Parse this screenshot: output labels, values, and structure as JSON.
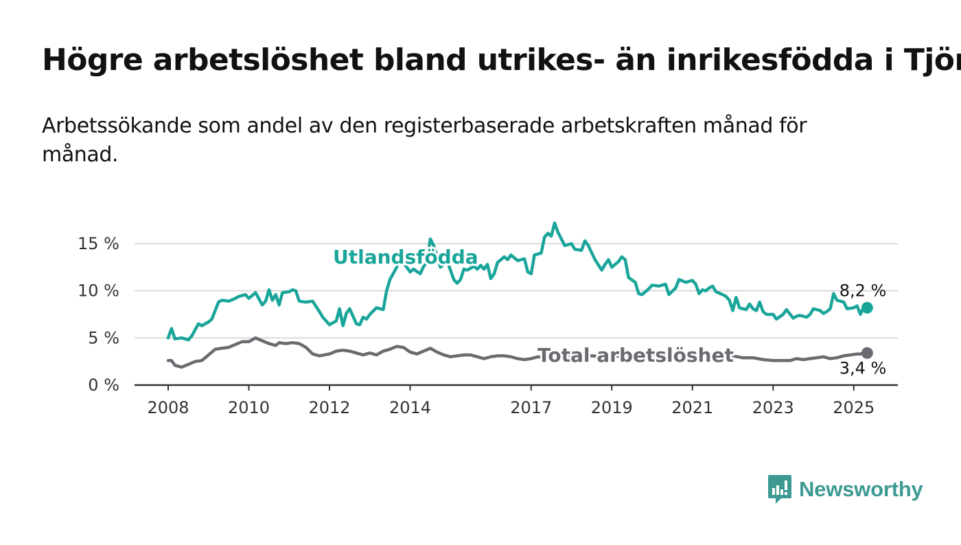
{
  "title": "Högre arbetslöshet bland utrikes- än inrikesfödda i Tjörn",
  "subtitle": "Arbetssökande som andel av den registerbaserade arbetskraften månad för månad.",
  "brand": {
    "name": "Newsworthy",
    "icon": "bar-chart-speech-bubble-icon",
    "color": "#3c9a92"
  },
  "colors": {
    "utlandsfodda": "#1aa59a",
    "total": "#6b6a70",
    "grid": "#d9d9d9",
    "axis": "#333333"
  },
  "chart_data": {
    "type": "line",
    "title": "Högre arbetslöshet bland utrikes- än inrikesfödda i Tjörn",
    "xlabel": "",
    "ylabel": "",
    "x_ticks": [
      "2008",
      "2010",
      "2012",
      "2014",
      "2017",
      "2019",
      "2021",
      "2023",
      "2025"
    ],
    "y_ticks": [
      "0 %",
      "5 %",
      "10 %",
      "15 %"
    ],
    "y_tick_values": [
      0,
      5,
      10,
      15
    ],
    "ylim": [
      0,
      15
    ],
    "xlim": [
      "2008-01",
      "2025-05"
    ],
    "grid": true,
    "legend": "inline labels",
    "series": [
      {
        "name": "Utlandsfödda",
        "label": "Utlandsfödda",
        "end_label": "8,2 %",
        "color": "#1aa59a",
        "points": [
          [
            "2008-01",
            5.0
          ],
          [
            "2008-02",
            6.0
          ],
          [
            "2008-03",
            4.9
          ],
          [
            "2008-05",
            5.0
          ],
          [
            "2008-07",
            4.8
          ],
          [
            "2008-08",
            5.2
          ],
          [
            "2008-10",
            6.5
          ],
          [
            "2008-11",
            6.3
          ],
          [
            "2009-01",
            6.7
          ],
          [
            "2009-02",
            7.0
          ],
          [
            "2009-04",
            8.8
          ],
          [
            "2009-05",
            9.0
          ],
          [
            "2009-07",
            8.9
          ],
          [
            "2009-09",
            9.2
          ],
          [
            "2009-10",
            9.4
          ],
          [
            "2009-12",
            9.6
          ],
          [
            "2010-01",
            9.2
          ],
          [
            "2010-03",
            9.8
          ],
          [
            "2010-05",
            8.5
          ],
          [
            "2010-06",
            8.9
          ],
          [
            "2010-07",
            10.1
          ],
          [
            "2010-08",
            9.0
          ],
          [
            "2010-09",
            9.6
          ],
          [
            "2010-10",
            8.5
          ],
          [
            "2010-11",
            9.8
          ],
          [
            "2011-01",
            9.9
          ],
          [
            "2011-02",
            10.1
          ],
          [
            "2011-03",
            10.0
          ],
          [
            "2011-04",
            8.9
          ],
          [
            "2011-06",
            8.8
          ],
          [
            "2011-08",
            8.9
          ],
          [
            "2011-10",
            7.8
          ],
          [
            "2011-11",
            7.2
          ],
          [
            "2012-01",
            6.4
          ],
          [
            "2012-03",
            6.8
          ],
          [
            "2012-04",
            8.1
          ],
          [
            "2012-05",
            6.3
          ],
          [
            "2012-06",
            7.6
          ],
          [
            "2012-07",
            8.1
          ],
          [
            "2012-09",
            6.5
          ],
          [
            "2012-10",
            6.4
          ],
          [
            "2012-11",
            7.2
          ],
          [
            "2012-12",
            7.0
          ],
          [
            "2013-01",
            7.5
          ],
          [
            "2013-03",
            8.2
          ],
          [
            "2013-05",
            8.0
          ],
          [
            "2013-06",
            10.0
          ],
          [
            "2013-07",
            11.2
          ],
          [
            "2013-09",
            12.5
          ],
          [
            "2013-10",
            13.5
          ],
          [
            "2013-12",
            12.5
          ],
          [
            "2014-01",
            12.0
          ],
          [
            "2014-02",
            12.3
          ],
          [
            "2014-04",
            11.8
          ],
          [
            "2014-05",
            12.6
          ],
          [
            "2014-06",
            13.0
          ],
          [
            "2014-07",
            15.5
          ],
          [
            "2014-08",
            14.8
          ],
          [
            "2014-10",
            12.5
          ],
          [
            "2014-11",
            12.8
          ],
          [
            "2014-12",
            13.2
          ],
          [
            "2015-02",
            11.2
          ],
          [
            "2015-03",
            10.8
          ],
          [
            "2015-04",
            11.2
          ],
          [
            "2015-05",
            12.3
          ],
          [
            "2015-06",
            12.2
          ],
          [
            "2015-08",
            12.6
          ],
          [
            "2015-09",
            12.3
          ],
          [
            "2015-10",
            12.7
          ],
          [
            "2015-11",
            12.3
          ],
          [
            "2015-12",
            12.8
          ],
          [
            "2016-01",
            11.3
          ],
          [
            "2016-02",
            11.8
          ],
          [
            "2016-03",
            13.0
          ],
          [
            "2016-05",
            13.6
          ],
          [
            "2016-06",
            13.3
          ],
          [
            "2016-07",
            13.8
          ],
          [
            "2016-08",
            13.5
          ],
          [
            "2016-09",
            13.2
          ],
          [
            "2016-11",
            13.4
          ],
          [
            "2016-12",
            12.0
          ],
          [
            "2017-01",
            11.8
          ],
          [
            "2017-02",
            13.8
          ],
          [
            "2017-04",
            14.0
          ],
          [
            "2017-05",
            15.7
          ],
          [
            "2017-06",
            16.1
          ],
          [
            "2017-07",
            15.8
          ],
          [
            "2017-08",
            17.2
          ],
          [
            "2017-09",
            16.2
          ],
          [
            "2017-11",
            14.8
          ],
          [
            "2018-01",
            15.0
          ],
          [
            "2018-02",
            14.4
          ],
          [
            "2018-04",
            14.3
          ],
          [
            "2018-05",
            15.3
          ],
          [
            "2018-06",
            14.8
          ],
          [
            "2018-08",
            13.3
          ],
          [
            "2018-10",
            12.2
          ],
          [
            "2018-11",
            12.8
          ],
          [
            "2018-12",
            13.3
          ],
          [
            "2019-01",
            12.5
          ],
          [
            "2019-03",
            13.1
          ],
          [
            "2019-04",
            13.6
          ],
          [
            "2019-05",
            13.3
          ],
          [
            "2019-06",
            11.4
          ],
          [
            "2019-08",
            10.9
          ],
          [
            "2019-09",
            9.7
          ],
          [
            "2019-10",
            9.6
          ],
          [
            "2019-12",
            10.2
          ],
          [
            "2020-01",
            10.6
          ],
          [
            "2020-03",
            10.5
          ],
          [
            "2020-05",
            10.7
          ],
          [
            "2020-06",
            9.6
          ],
          [
            "2020-08",
            10.3
          ],
          [
            "2020-09",
            11.2
          ],
          [
            "2020-11",
            10.9
          ],
          [
            "2021-01",
            11.1
          ],
          [
            "2021-02",
            10.7
          ],
          [
            "2021-03",
            9.7
          ],
          [
            "2021-04",
            10.1
          ],
          [
            "2021-05",
            10.0
          ],
          [
            "2021-06",
            10.3
          ],
          [
            "2021-07",
            10.5
          ],
          [
            "2021-08",
            9.9
          ],
          [
            "2021-10",
            9.6
          ],
          [
            "2021-11",
            9.4
          ],
          [
            "2021-12",
            9.0
          ],
          [
            "2022-01",
            7.9
          ],
          [
            "2022-02",
            9.3
          ],
          [
            "2022-03",
            8.2
          ],
          [
            "2022-05",
            8.0
          ],
          [
            "2022-06",
            8.6
          ],
          [
            "2022-07",
            8.1
          ],
          [
            "2022-08",
            7.9
          ],
          [
            "2022-09",
            8.8
          ],
          [
            "2022-10",
            7.8
          ],
          [
            "2022-11",
            7.5
          ],
          [
            "2023-01",
            7.5
          ],
          [
            "2023-02",
            7.0
          ],
          [
            "2023-04",
            7.5
          ],
          [
            "2023-05",
            8.0
          ],
          [
            "2023-07",
            7.1
          ],
          [
            "2023-08",
            7.3
          ],
          [
            "2023-09",
            7.4
          ],
          [
            "2023-11",
            7.2
          ],
          [
            "2023-12",
            7.5
          ],
          [
            "2024-01",
            8.1
          ],
          [
            "2024-03",
            7.9
          ],
          [
            "2024-04",
            7.6
          ],
          [
            "2024-05",
            7.8
          ],
          [
            "2024-06",
            8.1
          ],
          [
            "2024-07",
            9.7
          ],
          [
            "2024-08",
            9.0
          ],
          [
            "2024-10",
            8.8
          ],
          [
            "2024-11",
            8.1
          ],
          [
            "2025-01",
            8.2
          ],
          [
            "2025-02",
            8.4
          ],
          [
            "2025-03",
            7.5
          ],
          [
            "2025-04",
            8.3
          ],
          [
            "2025-05",
            8.2
          ]
        ]
      },
      {
        "name": "Total arbetslöshet",
        "label": "Total arbetslöshet",
        "end_label": "3,4 %",
        "color": "#6b6a70",
        "points": [
          [
            "2008-01",
            2.6
          ],
          [
            "2008-02",
            2.6
          ],
          [
            "2008-03",
            2.1
          ],
          [
            "2008-05",
            1.9
          ],
          [
            "2008-07",
            2.2
          ],
          [
            "2008-09",
            2.5
          ],
          [
            "2008-11",
            2.6
          ],
          [
            "2009-01",
            3.2
          ],
          [
            "2009-03",
            3.8
          ],
          [
            "2009-05",
            3.9
          ],
          [
            "2009-07",
            4.0
          ],
          [
            "2009-09",
            4.3
          ],
          [
            "2009-11",
            4.6
          ],
          [
            "2010-01",
            4.6
          ],
          [
            "2010-03",
            5.0
          ],
          [
            "2010-05",
            4.7
          ],
          [
            "2010-07",
            4.4
          ],
          [
            "2010-09",
            4.2
          ],
          [
            "2010-10",
            4.5
          ],
          [
            "2010-12",
            4.4
          ],
          [
            "2011-02",
            4.5
          ],
          [
            "2011-04",
            4.4
          ],
          [
            "2011-06",
            4.0
          ],
          [
            "2011-08",
            3.3
          ],
          [
            "2011-10",
            3.1
          ],
          [
            "2012-01",
            3.3
          ],
          [
            "2012-03",
            3.6
          ],
          [
            "2012-05",
            3.7
          ],
          [
            "2012-07",
            3.6
          ],
          [
            "2012-09",
            3.4
          ],
          [
            "2012-11",
            3.2
          ],
          [
            "2013-01",
            3.4
          ],
          [
            "2013-03",
            3.2
          ],
          [
            "2013-05",
            3.6
          ],
          [
            "2013-07",
            3.8
          ],
          [
            "2013-09",
            4.1
          ],
          [
            "2013-11",
            4.0
          ],
          [
            "2014-01",
            3.5
          ],
          [
            "2014-03",
            3.3
          ],
          [
            "2014-05",
            3.6
          ],
          [
            "2014-07",
            3.9
          ],
          [
            "2014-09",
            3.5
          ],
          [
            "2014-11",
            3.2
          ],
          [
            "2015-01",
            3.0
          ],
          [
            "2015-03",
            3.1
          ],
          [
            "2015-05",
            3.2
          ],
          [
            "2015-07",
            3.2
          ],
          [
            "2015-09",
            3.0
          ],
          [
            "2015-11",
            2.8
          ],
          [
            "2016-01",
            3.0
          ],
          [
            "2016-03",
            3.1
          ],
          [
            "2016-05",
            3.1
          ],
          [
            "2016-07",
            3.0
          ],
          [
            "2016-09",
            2.8
          ],
          [
            "2016-11",
            2.7
          ],
          [
            "2017-01",
            2.8
          ],
          [
            "2017-03",
            3.0
          ],
          [
            "2017-05",
            2.9
          ],
          [
            "2017-07",
            3.3
          ],
          [
            "2017-09",
            3.2
          ],
          [
            "2017-11",
            3.1
          ],
          [
            "2018-01",
            3.0
          ],
          [
            "2018-04",
            3.0
          ],
          [
            "2018-07",
            3.1
          ],
          [
            "2018-10",
            3.0
          ],
          [
            "2019-01",
            3.0
          ],
          [
            "2019-04",
            3.1
          ],
          [
            "2019-07",
            3.2
          ],
          [
            "2019-10",
            3.2
          ],
          [
            "2020-01",
            3.2
          ],
          [
            "2020-04",
            3.3
          ],
          [
            "2020-07",
            3.2
          ],
          [
            "2020-10",
            3.1
          ],
          [
            "2021-01",
            3.1
          ],
          [
            "2021-04",
            3.1
          ],
          [
            "2021-07",
            3.0
          ],
          [
            "2021-10",
            3.0
          ],
          [
            "2022-01",
            3.1
          ],
          [
            "2022-04",
            2.9
          ],
          [
            "2022-07",
            2.9
          ],
          [
            "2022-10",
            2.7
          ],
          [
            "2023-01",
            2.6
          ],
          [
            "2023-04",
            2.6
          ],
          [
            "2023-06",
            2.6
          ],
          [
            "2023-08",
            2.8
          ],
          [
            "2023-10",
            2.7
          ],
          [
            "2023-12",
            2.8
          ],
          [
            "2024-02",
            2.9
          ],
          [
            "2024-04",
            3.0
          ],
          [
            "2024-06",
            2.8
          ],
          [
            "2024-08",
            2.9
          ],
          [
            "2024-10",
            3.1
          ],
          [
            "2024-12",
            3.2
          ],
          [
            "2025-02",
            3.3
          ],
          [
            "2025-03",
            3.3
          ],
          [
            "2025-04",
            3.4
          ],
          [
            "2025-05",
            3.4
          ]
        ]
      }
    ]
  }
}
